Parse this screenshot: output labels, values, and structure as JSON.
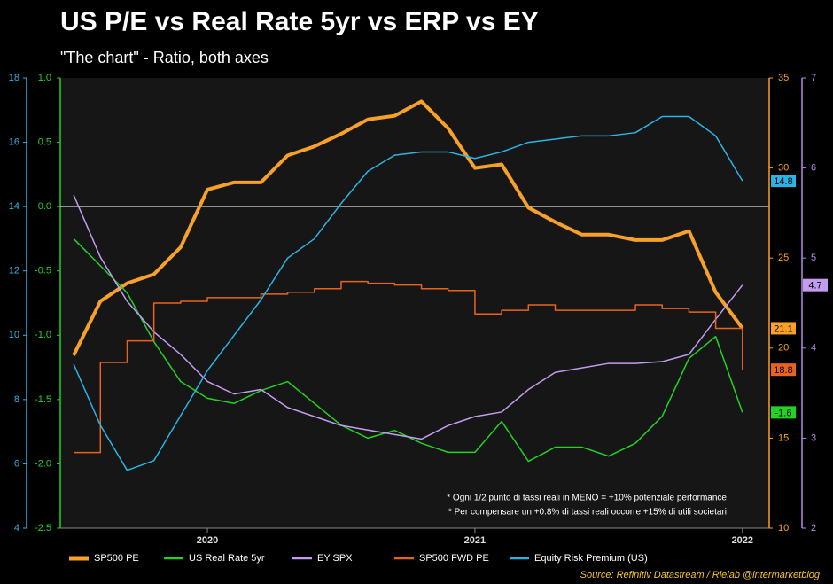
{
  "chart_data": {
    "type": "line",
    "title": "US P/E vs Real Rate 5yr vs ERP vs EY",
    "subtitle": "\"The chart\" - Ratio, both axes",
    "annotations": [
      "* Ogni 1/2 punto di tassi reali in MENO = +10% potenziale performance",
      "* Per compensare un +0.8% di tassi reali occorre +15% di utili societari"
    ],
    "source": "Source: Refinitiv Datastream / Rielab @intermarketblog",
    "x": [
      2019.5,
      2019.6,
      2019.7,
      2019.8,
      2019.9,
      2020.0,
      2020.1,
      2020.2,
      2020.3,
      2020.4,
      2020.5,
      2020.6,
      2020.7,
      2020.8,
      2020.9,
      2021.0,
      2021.1,
      2021.2,
      2021.3,
      2021.4,
      2021.5,
      2021.6,
      2021.7,
      2021.8,
      2021.9,
      2022.0
    ],
    "xlim": [
      2019.45,
      2022.1
    ],
    "xticks": [
      2020,
      2021,
      2022
    ],
    "ylim": [
      4,
      18
    ],
    "yticks": [
      4,
      6,
      8,
      10,
      12,
      14,
      16,
      18
    ],
    "y2lim": [
      10,
      35
    ],
    "y2ticks": [
      10,
      15,
      20,
      25,
      30,
      35
    ],
    "y3lim": [
      -2.5,
      1.0
    ],
    "y3ticks": [
      -2.5,
      {
        "value": -2,
        "label": "-2.0"
      },
      -1.5,
      {
        "value": -1,
        "label": "-1.0"
      },
      -0.5,
      {
        "value": 0,
        "label": "0.0"
      },
      0.5,
      {
        "value": 1,
        "label": "1.0"
      }
    ],
    "y4lim": [
      2,
      7
    ],
    "y4ticks": [
      2,
      3,
      4,
      5,
      6,
      7
    ],
    "series": [
      {
        "name": "SP500 PE",
        "color": "#f7a12a",
        "axis": "y2",
        "width": 4,
        "values": [
          19.6,
          22.6,
          23.6,
          24.1,
          25.6,
          28.8,
          29.2,
          29.2,
          30.7,
          31.2,
          31.9,
          32.7,
          32.9,
          33.7,
          32.2,
          30.0,
          30.2,
          27.8,
          27.0,
          26.3,
          26.3,
          26.0,
          26.0,
          26.5,
          23.1,
          21.1
        ]
      },
      {
        "name": "US Real Rate 5yr",
        "color": "#22d322",
        "axis": "y3",
        "width": 1.5,
        "values": [
          -0.25,
          -0.46,
          -0.67,
          -1.05,
          -1.36,
          -1.49,
          -1.53,
          -1.43,
          -1.36,
          -1.53,
          -1.7,
          -1.8,
          -1.74,
          -1.84,
          -1.91,
          -1.91,
          -1.67,
          -1.98,
          -1.87,
          -1.87,
          -1.94,
          -1.84,
          -1.63,
          -1.18,
          -1.01,
          -1.6
        ]
      },
      {
        "name": "EY SPX",
        "color": "#c29cf0",
        "axis": "y4",
        "width": 1.5,
        "values": [
          5.7,
          5.01,
          4.52,
          4.18,
          3.93,
          3.63,
          3.49,
          3.54,
          3.34,
          3.24,
          3.14,
          3.09,
          3.04,
          2.99,
          3.14,
          3.24,
          3.29,
          3.54,
          3.73,
          3.78,
          3.83,
          3.83,
          3.85,
          3.93,
          4.32,
          4.7
        ]
      },
      {
        "name": "SP500 FWD PE",
        "color": "#e8641e",
        "axis": "y2",
        "width": 1.5,
        "step": true,
        "values": [
          14.2,
          19.2,
          20.4,
          22.5,
          22.6,
          22.8,
          22.8,
          23.0,
          23.1,
          23.3,
          23.7,
          23.6,
          23.5,
          23.3,
          23.2,
          21.9,
          22.1,
          22.4,
          22.1,
          22.1,
          22.1,
          22.4,
          22.2,
          22.0,
          21.1,
          18.8
        ]
      },
      {
        "name": "Equity Risk Premium (US)",
        "color": "#2ab4e6",
        "axis": "y",
        "width": 1.5,
        "values": [
          9.1,
          7.2,
          5.8,
          6.1,
          7.5,
          8.9,
          10.0,
          11.1,
          12.4,
          13.0,
          14.1,
          15.1,
          15.6,
          15.7,
          15.7,
          15.5,
          15.7,
          16.0,
          16.1,
          16.2,
          16.2,
          16.3,
          16.8,
          16.8,
          16.2,
          14.8
        ]
      }
    ],
    "axis_colors": {
      "y": "#2ab4e6",
      "y2": "#f7a12a",
      "y3": "#22d322",
      "y4": "#b48ce8"
    }
  }
}
